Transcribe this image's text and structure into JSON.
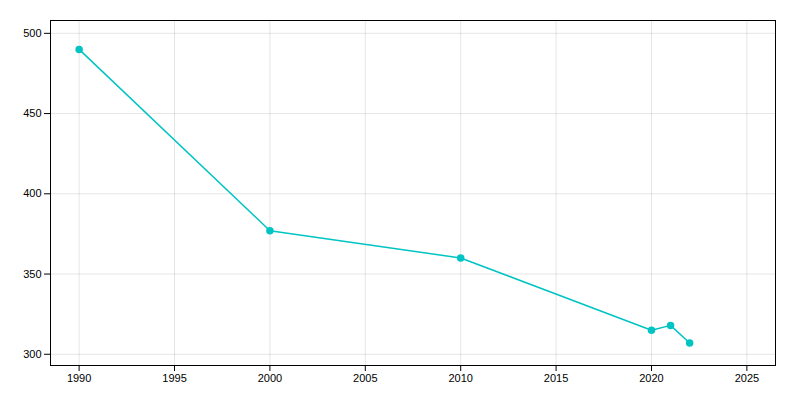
{
  "chart_data": {
    "type": "line",
    "x": [
      1990,
      2000,
      2010,
      2020,
      2021,
      2022
    ],
    "values": [
      490,
      377,
      360,
      315,
      318,
      307
    ],
    "color": "#00C4C4",
    "marker": "circle",
    "xlim": [
      1988.5,
      2026.5
    ],
    "xticks": [
      1990,
      1995,
      2000,
      2005,
      2010,
      2015,
      2020,
      2025
    ],
    "ylim": [
      293,
      508
    ],
    "yticks": [
      300,
      350,
      400,
      450,
      500
    ],
    "grid": true
  }
}
